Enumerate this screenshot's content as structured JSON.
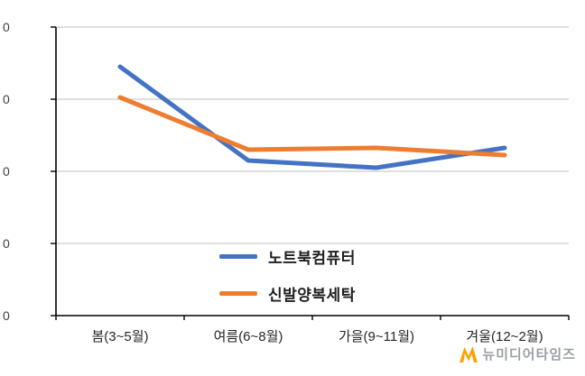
{
  "chart_data": {
    "type": "line",
    "categories": [
      "봄(3~5월)",
      "여름(6~8월)",
      "가을(9~11월)",
      "겨울(12~2월)"
    ],
    "series": [
      {
        "name": "노트북컴퓨터",
        "color": "#4472C4",
        "values": [
          69,
          43,
          41,
          46.5
        ]
      },
      {
        "name": "신발양복세탁",
        "color": "#ED7D31",
        "values": [
          60.5,
          46,
          46.5,
          44.5
        ]
      }
    ],
    "title": "",
    "xlabel": "",
    "ylabel": "",
    "ylim": [
      0,
      80
    ],
    "ytick_step": 20,
    "ytick_labels_visible": [
      "0",
      "0",
      "0",
      "0",
      "0"
    ],
    "grid": true,
    "legend_position": "inside-bottom-center"
  },
  "colors": {
    "axis": "#000000",
    "gridline": "#bfbfbf",
    "tick_text": "#404040",
    "watermark_m": "#FFA000"
  },
  "watermark": {
    "text": "뉴미디어타임즈"
  }
}
